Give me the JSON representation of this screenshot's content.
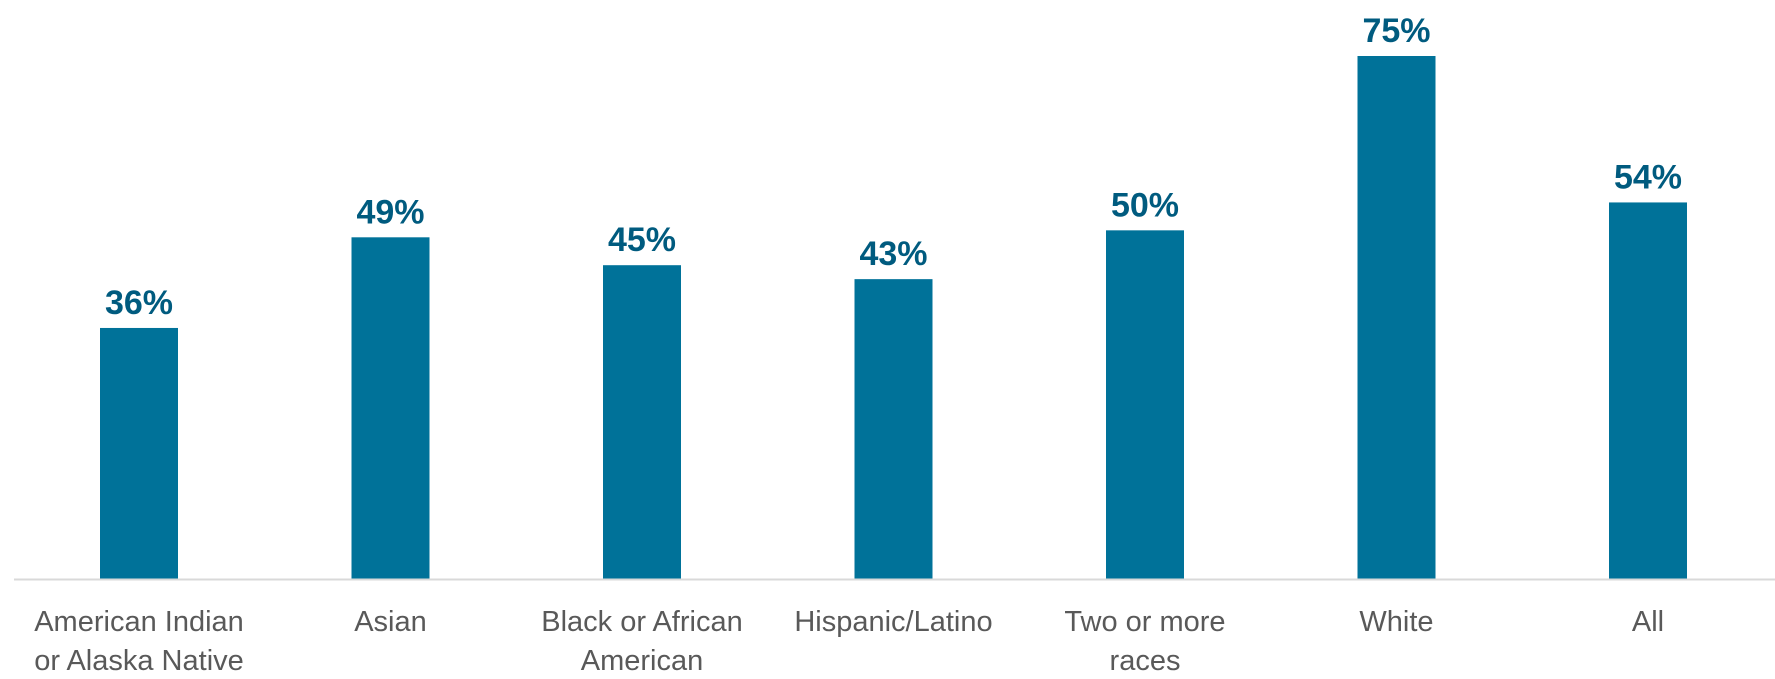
{
  "chart_data": {
    "type": "bar",
    "categories": [
      [
        "American Indian",
        "or Alaska Native"
      ],
      [
        "Asian"
      ],
      [
        "Black or African",
        "American"
      ],
      [
        "Hispanic/Latino"
      ],
      [
        "Two or more",
        "races"
      ],
      [
        "White"
      ],
      [
        "All"
      ]
    ],
    "values": [
      36,
      49,
      45,
      43,
      50,
      75,
      54
    ],
    "data_labels": [
      "36%",
      "49%",
      "45%",
      "43%",
      "50%",
      "75%",
      "54%"
    ],
    "title": "",
    "xlabel": "",
    "ylabel": "",
    "ylim": [
      0,
      75
    ],
    "grid": false,
    "legend": "none"
  },
  "colors": {
    "bar": "#007299",
    "data_label": "#005b7f",
    "axis": "#d9d9d9",
    "category_label": "#595959"
  }
}
